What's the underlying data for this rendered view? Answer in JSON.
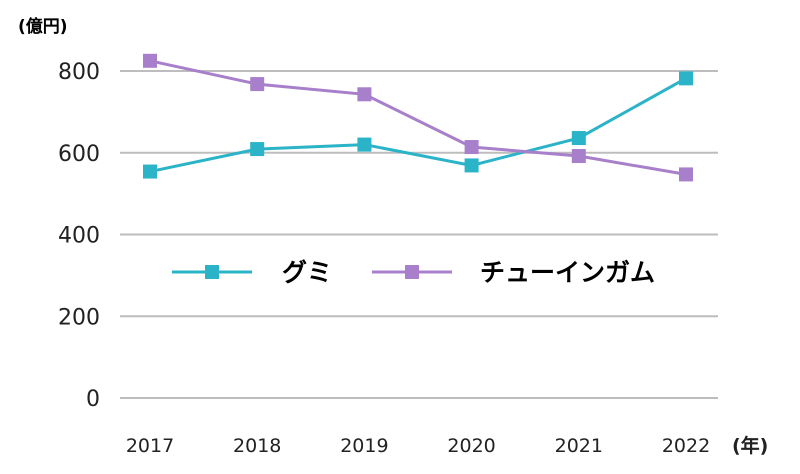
{
  "chart_data": {
    "type": "line",
    "title": "",
    "unit_label": "(億円)",
    "x_unit_label": "(年)",
    "categories": [
      "2017",
      "2018",
      "2019",
      "2020",
      "2021",
      "2022"
    ],
    "yticks": [
      "0",
      "200",
      "400",
      "600",
      "800"
    ],
    "ylim": [
      0,
      800
    ],
    "grid": true,
    "legend_position": "center",
    "series": [
      {
        "name": "グミ",
        "color": "#2bb3c8",
        "values": [
          554,
          609,
          620,
          569,
          636,
          782
        ]
      },
      {
        "name": "チューインガム",
        "color": "#a77fcb",
        "values": [
          825,
          768,
          743,
          614,
          592,
          547
        ]
      }
    ]
  }
}
